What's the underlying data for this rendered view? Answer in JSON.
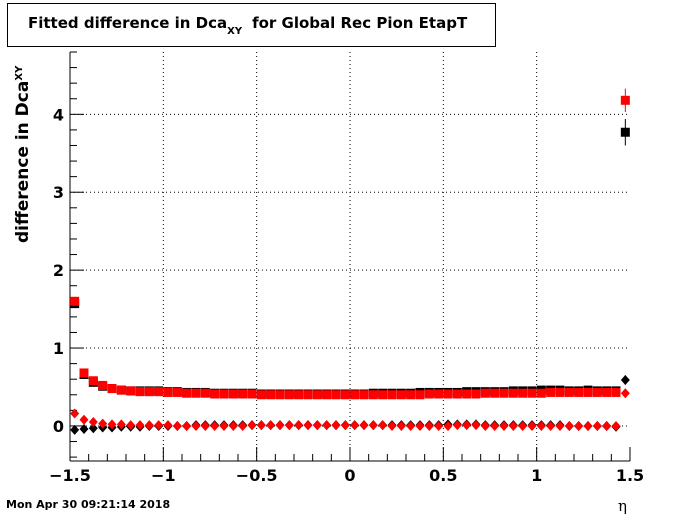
{
  "title": {
    "main": "Fitted difference in Dca",
    "sub": "XY",
    "rest": "for Global Rec Pion EtapT"
  },
  "timestamp": "Mon Apr 30 09:21:14 2018",
  "chart_data": {
    "type": "scatter",
    "xlabel": "η",
    "ylabel": {
      "main": "difference in Dca",
      "sub": "XY"
    },
    "xlim": [
      -1.5,
      1.5
    ],
    "ylim": [
      -0.45,
      4.8
    ],
    "xticks": [
      -1.5,
      -1,
      -0.5,
      0,
      0.5,
      1,
      1.5
    ],
    "xtick_labels": [
      "−1.5",
      "−1",
      "−0.5",
      "0",
      "0.5",
      "1",
      "1.5"
    ],
    "yticks": [
      0,
      1,
      2,
      3,
      4
    ],
    "ytick_labels": [
      "0",
      "1",
      "2",
      "3",
      "4"
    ],
    "grid": true,
    "series": [
      {
        "marker": "square",
        "color": "#000000",
        "x": [
          -1.475,
          -1.425,
          -1.375,
          -1.325,
          -1.275,
          -1.225,
          -1.175,
          -1.125,
          -1.075,
          -1.025,
          -0.975,
          -0.925,
          -0.875,
          -0.825,
          -0.775,
          -0.725,
          -0.675,
          -0.625,
          -0.575,
          -0.525,
          -0.475,
          -0.425,
          -0.375,
          -0.325,
          -0.275,
          -0.225,
          -0.175,
          -0.125,
          -0.075,
          -0.025,
          0.025,
          0.075,
          0.125,
          0.175,
          0.225,
          0.275,
          0.325,
          0.375,
          0.425,
          0.475,
          0.525,
          0.575,
          0.625,
          0.675,
          0.725,
          0.775,
          0.825,
          0.875,
          0.925,
          0.975,
          1.025,
          1.075,
          1.125,
          1.175,
          1.225,
          1.275,
          1.325,
          1.375,
          1.425,
          1.475
        ],
        "y": [
          1.57,
          0.66,
          0.56,
          0.51,
          0.48,
          0.46,
          0.45,
          0.45,
          0.45,
          0.45,
          0.44,
          0.44,
          0.43,
          0.43,
          0.43,
          0.42,
          0.42,
          0.42,
          0.42,
          0.42,
          0.41,
          0.41,
          0.41,
          0.41,
          0.41,
          0.41,
          0.41,
          0.41,
          0.41,
          0.41,
          0.41,
          0.41,
          0.42,
          0.42,
          0.42,
          0.42,
          0.42,
          0.43,
          0.43,
          0.43,
          0.43,
          0.43,
          0.44,
          0.44,
          0.44,
          0.44,
          0.44,
          0.45,
          0.45,
          0.45,
          0.46,
          0.46,
          0.46,
          0.45,
          0.45,
          0.46,
          0.45,
          0.45,
          0.45,
          3.77
        ],
        "yerr": [
          0.04,
          0.02,
          0.02,
          0.01,
          0.01,
          0.01,
          0.01,
          0.01,
          0.01,
          0.01,
          0.01,
          0.01,
          0.01,
          0.01,
          0.01,
          0.01,
          0.01,
          0.01,
          0.01,
          0.01,
          0.01,
          0.01,
          0.01,
          0.01,
          0.01,
          0.01,
          0.01,
          0.01,
          0.01,
          0.01,
          0.01,
          0.01,
          0.01,
          0.01,
          0.01,
          0.01,
          0.01,
          0.01,
          0.01,
          0.01,
          0.01,
          0.01,
          0.01,
          0.01,
          0.01,
          0.01,
          0.01,
          0.01,
          0.01,
          0.01,
          0.01,
          0.01,
          0.01,
          0.01,
          0.01,
          0.01,
          0.01,
          0.01,
          0.01,
          0.17
        ]
      },
      {
        "marker": "square",
        "color": "#ff0000",
        "x": [
          -1.475,
          -1.425,
          -1.375,
          -1.325,
          -1.275,
          -1.225,
          -1.175,
          -1.125,
          -1.075,
          -1.025,
          -0.975,
          -0.925,
          -0.875,
          -0.825,
          -0.775,
          -0.725,
          -0.675,
          -0.625,
          -0.575,
          -0.525,
          -0.475,
          -0.425,
          -0.375,
          -0.325,
          -0.275,
          -0.225,
          -0.175,
          -0.125,
          -0.075,
          -0.025,
          0.025,
          0.075,
          0.125,
          0.175,
          0.225,
          0.275,
          0.325,
          0.375,
          0.425,
          0.475,
          0.525,
          0.575,
          0.625,
          0.675,
          0.725,
          0.775,
          0.825,
          0.875,
          0.925,
          0.975,
          1.025,
          1.075,
          1.125,
          1.175,
          1.225,
          1.275,
          1.325,
          1.375,
          1.425,
          1.475
        ],
        "y": [
          1.6,
          0.68,
          0.58,
          0.52,
          0.48,
          0.46,
          0.45,
          0.44,
          0.44,
          0.44,
          0.43,
          0.43,
          0.42,
          0.42,
          0.42,
          0.41,
          0.41,
          0.41,
          0.41,
          0.41,
          0.4,
          0.4,
          0.4,
          0.4,
          0.4,
          0.4,
          0.4,
          0.4,
          0.4,
          0.4,
          0.4,
          0.4,
          0.4,
          0.4,
          0.4,
          0.4,
          0.4,
          0.4,
          0.41,
          0.41,
          0.41,
          0.41,
          0.41,
          0.41,
          0.42,
          0.42,
          0.42,
          0.42,
          0.42,
          0.42,
          0.42,
          0.43,
          0.43,
          0.43,
          0.43,
          0.43,
          0.43,
          0.43,
          0.43,
          4.18
        ],
        "yerr": [
          0.04,
          0.02,
          0.02,
          0.01,
          0.01,
          0.01,
          0.01,
          0.01,
          0.01,
          0.01,
          0.01,
          0.01,
          0.01,
          0.01,
          0.01,
          0.01,
          0.01,
          0.01,
          0.01,
          0.01,
          0.01,
          0.01,
          0.01,
          0.01,
          0.01,
          0.01,
          0.01,
          0.01,
          0.01,
          0.01,
          0.01,
          0.01,
          0.01,
          0.01,
          0.01,
          0.01,
          0.01,
          0.01,
          0.01,
          0.01,
          0.01,
          0.01,
          0.01,
          0.01,
          0.01,
          0.01,
          0.01,
          0.01,
          0.01,
          0.01,
          0.01,
          0.01,
          0.01,
          0.01,
          0.01,
          0.01,
          0.01,
          0.01,
          0.01,
          0.15
        ]
      },
      {
        "marker": "diamond",
        "color": "#000000",
        "x": [
          -1.475,
          -1.425,
          -1.375,
          -1.325,
          -1.275,
          -1.225,
          -1.175,
          -1.125,
          -1.075,
          -1.025,
          -0.975,
          -0.925,
          -0.875,
          -0.825,
          -0.775,
          -0.725,
          -0.675,
          -0.625,
          -0.575,
          -0.525,
          -0.475,
          -0.425,
          -0.375,
          -0.325,
          -0.275,
          -0.225,
          -0.175,
          -0.125,
          -0.075,
          -0.025,
          0.025,
          0.075,
          0.125,
          0.175,
          0.225,
          0.275,
          0.325,
          0.375,
          0.425,
          0.475,
          0.525,
          0.575,
          0.625,
          0.675,
          0.725,
          0.775,
          0.825,
          0.875,
          0.925,
          0.975,
          1.025,
          1.075,
          1.125,
          1.175,
          1.225,
          1.275,
          1.325,
          1.375,
          1.425,
          1.475
        ],
        "y": [
          -0.05,
          -0.04,
          -0.03,
          -0.02,
          -0.02,
          -0.01,
          -0.01,
          -0.01,
          0.0,
          0.0,
          0.0,
          0.0,
          0.0,
          0.01,
          0.01,
          0.01,
          0.01,
          0.01,
          0.01,
          0.01,
          0.01,
          0.01,
          0.01,
          0.01,
          0.01,
          0.01,
          0.01,
          0.01,
          0.01,
          0.01,
          0.01,
          0.01,
          0.01,
          0.01,
          0.01,
          0.01,
          0.01,
          0.01,
          0.01,
          0.01,
          0.02,
          0.02,
          0.02,
          0.02,
          0.01,
          0.01,
          0.01,
          0.01,
          0.01,
          0.01,
          0.01,
          0.01,
          0.01,
          0.0,
          0.0,
          0.0,
          0.0,
          0.0,
          -0.01,
          0.59
        ],
        "yerr": [
          0.02,
          0.01,
          0.01,
          0.01,
          0.01,
          0.01,
          0.01,
          0.01,
          0.01,
          0.01,
          0.01,
          0.01,
          0.01,
          0.01,
          0.01,
          0.01,
          0.01,
          0.01,
          0.01,
          0.01,
          0.01,
          0.01,
          0.01,
          0.01,
          0.01,
          0.01,
          0.01,
          0.01,
          0.01,
          0.01,
          0.01,
          0.01,
          0.01,
          0.01,
          0.01,
          0.01,
          0.01,
          0.01,
          0.01,
          0.01,
          0.01,
          0.01,
          0.01,
          0.01,
          0.01,
          0.01,
          0.01,
          0.01,
          0.01,
          0.01,
          0.01,
          0.01,
          0.01,
          0.01,
          0.01,
          0.01,
          0.01,
          0.01,
          0.01,
          0.06
        ]
      },
      {
        "marker": "diamond",
        "color": "#ff0000",
        "x": [
          -1.475,
          -1.425,
          -1.375,
          -1.325,
          -1.275,
          -1.225,
          -1.175,
          -1.125,
          -1.075,
          -1.025,
          -0.975,
          -0.925,
          -0.875,
          -0.825,
          -0.775,
          -0.725,
          -0.675,
          -0.625,
          -0.575,
          -0.525,
          -0.475,
          -0.425,
          -0.375,
          -0.325,
          -0.275,
          -0.225,
          -0.175,
          -0.125,
          -0.075,
          -0.025,
          0.025,
          0.075,
          0.125,
          0.175,
          0.225,
          0.275,
          0.325,
          0.375,
          0.425,
          0.475,
          0.525,
          0.575,
          0.625,
          0.675,
          0.725,
          0.775,
          0.825,
          0.875,
          0.925,
          0.975,
          1.025,
          1.075,
          1.125,
          1.175,
          1.225,
          1.275,
          1.325,
          1.375,
          1.425,
          1.475
        ],
        "y": [
          0.16,
          0.08,
          0.05,
          0.03,
          0.02,
          0.02,
          0.01,
          0.01,
          0.01,
          0.01,
          0.01,
          0.0,
          0.0,
          0.0,
          0.0,
          0.0,
          0.0,
          0.0,
          0.0,
          0.01,
          0.01,
          0.01,
          0.01,
          0.01,
          0.01,
          0.01,
          0.01,
          0.01,
          0.01,
          0.01,
          0.01,
          0.01,
          0.01,
          0.01,
          0.0,
          0.0,
          0.0,
          0.0,
          0.0,
          0.0,
          0.0,
          0.01,
          0.01,
          0.01,
          0.0,
          0.0,
          0.0,
          0.0,
          0.0,
          0.0,
          0.0,
          0.0,
          0.0,
          0.0,
          0.0,
          0.0,
          0.0,
          0.0,
          0.0,
          0.42
        ],
        "yerr": [
          0.02,
          0.01,
          0.01,
          0.01,
          0.01,
          0.01,
          0.01,
          0.01,
          0.01,
          0.01,
          0.01,
          0.01,
          0.01,
          0.01,
          0.01,
          0.01,
          0.01,
          0.01,
          0.01,
          0.01,
          0.01,
          0.01,
          0.01,
          0.01,
          0.01,
          0.01,
          0.01,
          0.01,
          0.01,
          0.01,
          0.01,
          0.01,
          0.01,
          0.01,
          0.01,
          0.01,
          0.01,
          0.01,
          0.01,
          0.01,
          0.01,
          0.01,
          0.01,
          0.01,
          0.01,
          0.01,
          0.01,
          0.01,
          0.01,
          0.01,
          0.01,
          0.01,
          0.01,
          0.01,
          0.01,
          0.01,
          0.01,
          0.01,
          0.01,
          0.05
        ]
      }
    ]
  }
}
